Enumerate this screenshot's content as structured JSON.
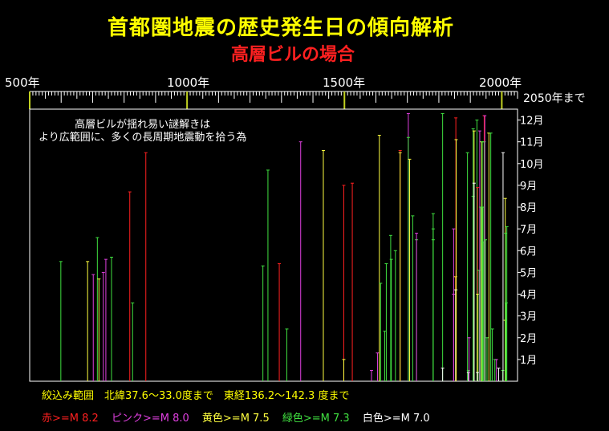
{
  "title": "首都圏地震の歴史発生日の傾向解析",
  "subtitle": "高層ビルの場合",
  "axis": {
    "top_ticks": [
      "500年",
      "1000年",
      "1500年",
      "2000年"
    ],
    "end_label": "2050年まで",
    "months": [
      "1月",
      "2月",
      "3月",
      "4月",
      "5月",
      "6月",
      "7月",
      "8月",
      "9月",
      "10月",
      "11月",
      "12月"
    ]
  },
  "note": [
    "高層ビルが揺れ易い謎解きは",
    "より広範囲に、多くの長周期地震動を拾う為"
  ],
  "range": "絞込み範囲　北緯37.6～33.0度まで　東経136.2～142.3 度まで",
  "legend": [
    {
      "text": "赤>=M 8.2",
      "color": "#ff2020"
    },
    {
      "text": "ピンク>=M 8.0",
      "color": "#e040e0"
    },
    {
      "text": "黄色>=M 7.5",
      "color": "#ffff40"
    },
    {
      "text": "緑色>=M 7.3",
      "color": "#40e040"
    },
    {
      "text": "白色>=M 7.0",
      "color": "#ffffff"
    }
  ],
  "chart_data": {
    "type": "bar",
    "xlim": [
      500,
      2050
    ],
    "ylim": [
      0,
      12.5
    ],
    "xlabel": "",
    "ylabel": "",
    "series_colors": {
      "red": "#ff2020",
      "pink": "#e040e0",
      "yellow": "#ffff40",
      "green": "#40e040",
      "white": "#ffffff"
    },
    "events": [
      {
        "year": 599,
        "month": 5.5,
        "s": "green"
      },
      {
        "year": 684,
        "month": 5.5,
        "s": "yellow"
      },
      {
        "year": 702,
        "month": 4.9,
        "s": "pink"
      },
      {
        "year": 715,
        "month": 6.6,
        "s": "green"
      },
      {
        "year": 720,
        "month": 4.7,
        "s": "yellow"
      },
      {
        "year": 734,
        "month": 5.0,
        "s": "pink"
      },
      {
        "year": 742,
        "month": 5.6,
        "s": "pink"
      },
      {
        "year": 760,
        "month": 5.7,
        "s": "green"
      },
      {
        "year": 818,
        "month": 8.7,
        "s": "red"
      },
      {
        "year": 827,
        "month": 3.6,
        "s": "green"
      },
      {
        "year": 869,
        "month": 10.5,
        "s": "red"
      },
      {
        "year": 1241,
        "month": 5.3,
        "s": "green"
      },
      {
        "year": 1257,
        "month": 9.7,
        "s": "green"
      },
      {
        "year": 1293,
        "month": 5.4,
        "s": "red"
      },
      {
        "year": 1317,
        "month": 2.4,
        "s": "green"
      },
      {
        "year": 1361,
        "month": 11.0,
        "s": "pink"
      },
      {
        "year": 1433,
        "month": 10.6,
        "s": "yellow"
      },
      {
        "year": 1498,
        "month": 9.0,
        "s": "red"
      },
      {
        "year": 1498,
        "month": 1.0,
        "s": "yellow"
      },
      {
        "year": 1525,
        "month": 9.1,
        "s": "red"
      },
      {
        "year": 1586,
        "month": 0.5,
        "s": "pink"
      },
      {
        "year": 1605,
        "month": 1.3,
        "s": "pink"
      },
      {
        "year": 1611,
        "month": 11.3,
        "s": "yellow"
      },
      {
        "year": 1615,
        "month": 4.5,
        "s": "green"
      },
      {
        "year": 1628,
        "month": 2.3,
        "s": "green"
      },
      {
        "year": 1633,
        "month": 5.4,
        "s": "green"
      },
      {
        "year": 1647,
        "month": 6.7,
        "s": "green"
      },
      {
        "year": 1649,
        "month": 5.6,
        "s": "green"
      },
      {
        "year": 1662,
        "month": 6.0,
        "s": "green"
      },
      {
        "year": 1677,
        "month": 10.6,
        "s": "red"
      },
      {
        "year": 1677,
        "month": 10.5,
        "s": "yellow"
      },
      {
        "year": 1703,
        "month": 12.3,
        "s": "pink"
      },
      {
        "year": 1703,
        "month": 11.2,
        "s": "green"
      },
      {
        "year": 1707,
        "month": 10.2,
        "s": "yellow"
      },
      {
        "year": 1717,
        "month": 7.6,
        "s": "green"
      },
      {
        "year": 1729,
        "month": 6.5,
        "s": "green"
      },
      {
        "year": 1729,
        "month": 6.8,
        "s": "pink"
      },
      {
        "year": 1782,
        "month": 7.0,
        "s": "green"
      },
      {
        "year": 1782,
        "month": 6.5,
        "s": "green"
      },
      {
        "year": 1782,
        "month": 7.7,
        "s": "green"
      },
      {
        "year": 1812,
        "month": 12.3,
        "s": "green"
      },
      {
        "year": 1812,
        "month": 0.6,
        "s": "white"
      },
      {
        "year": 1847,
        "month": 4.0,
        "s": "pink"
      },
      {
        "year": 1847,
        "month": 7.0,
        "s": "pink"
      },
      {
        "year": 1853,
        "month": 4.8,
        "s": "yellow"
      },
      {
        "year": 1854,
        "month": 12.1,
        "s": "red"
      },
      {
        "year": 1854,
        "month": 4.2,
        "s": "white"
      },
      {
        "year": 1855,
        "month": 11.1,
        "s": "yellow"
      },
      {
        "year": 1891,
        "month": 10.5,
        "s": "green"
      },
      {
        "year": 1894,
        "month": 0.5,
        "s": "green"
      },
      {
        "year": 1894,
        "month": 0.4,
        "s": "white"
      },
      {
        "year": 1896,
        "month": 2.0,
        "s": "pink"
      },
      {
        "year": 1909,
        "month": 11.6,
        "s": "green"
      },
      {
        "year": 1909,
        "month": 8.5,
        "s": "green"
      },
      {
        "year": 1912,
        "month": 11.5,
        "s": "yellow"
      },
      {
        "year": 1912,
        "month": 9.1,
        "s": "white"
      },
      {
        "year": 1921,
        "month": 12.0,
        "s": "green"
      },
      {
        "year": 1923,
        "month": 8.9,
        "s": "red"
      },
      {
        "year": 1923,
        "month": 4.0,
        "s": "yellow"
      },
      {
        "year": 1923,
        "month": 0.4,
        "s": "white"
      },
      {
        "year": 1928,
        "month": 5.1,
        "s": "green"
      },
      {
        "year": 1930,
        "month": 11.5,
        "s": "pink"
      },
      {
        "year": 1933,
        "month": 8.0,
        "s": "green"
      },
      {
        "year": 1936,
        "month": 11.0,
        "s": "yellow"
      },
      {
        "year": 1938,
        "month": 11.0,
        "s": "green"
      },
      {
        "year": 1940,
        "month": 8.0,
        "s": "green"
      },
      {
        "year": 1941,
        "month": 6.4,
        "s": "green"
      },
      {
        "year": 1944,
        "month": 12.2,
        "s": "red"
      },
      {
        "year": 1944,
        "month": 11.0,
        "s": "green"
      },
      {
        "year": 1946,
        "month": 12.2,
        "s": "pink"
      },
      {
        "year": 1948,
        "month": 6.5,
        "s": "green"
      },
      {
        "year": 1953,
        "month": 2.0,
        "s": "green"
      },
      {
        "year": 1959,
        "month": 11.4,
        "s": "yellow"
      },
      {
        "year": 1965,
        "month": 11.4,
        "s": "green"
      },
      {
        "year": 1970,
        "month": 2.4,
        "s": "green"
      },
      {
        "year": 1978,
        "month": 1.0,
        "s": "green"
      },
      {
        "year": 1983,
        "month": 1.0,
        "s": "pink"
      },
      {
        "year": 1990,
        "month": 0.6,
        "s": "white"
      },
      {
        "year": 2003,
        "month": 0.5,
        "s": "green"
      },
      {
        "year": 2004,
        "month": 10.5,
        "s": "white"
      },
      {
        "year": 2011,
        "month": 8.4,
        "s": "yellow"
      },
      {
        "year": 2011,
        "month": 2.8,
        "s": "yellow"
      },
      {
        "year": 2012,
        "month": 6.8,
        "s": "green"
      },
      {
        "year": 2014,
        "month": 3.6,
        "s": "green"
      },
      {
        "year": 2016,
        "month": 7.1,
        "s": "green"
      }
    ]
  }
}
